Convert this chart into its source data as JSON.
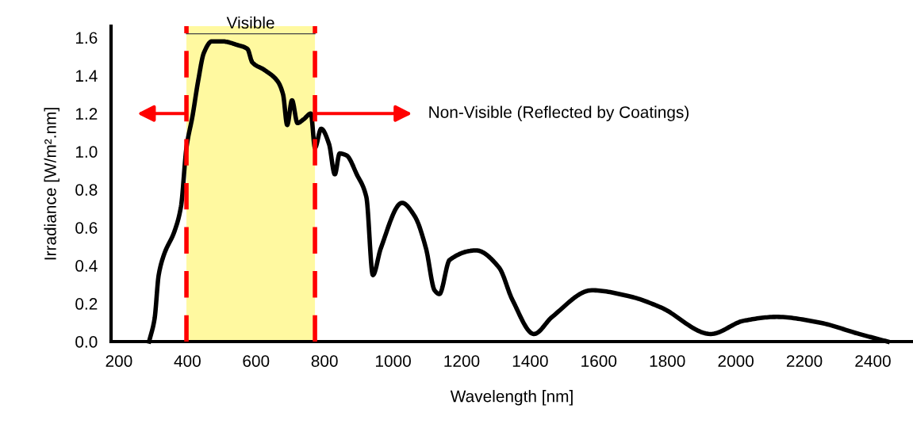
{
  "chart_data": {
    "type": "line",
    "xlabel": "Wavelength [nm]",
    "ylabel": "Irradiance [W/m².nm]",
    "xlim": [
      177,
      2517
    ],
    "xticks": [
      200,
      400,
      600,
      800,
      1000,
      1200,
      1400,
      1600,
      1800,
      2000,
      2200,
      2400
    ],
    "ylim": [
      0,
      1.66
    ],
    "yticks": [
      {
        "value": 0,
        "label": "0.0"
      },
      {
        "value": 0.2,
        "label": "0.2"
      },
      {
        "value": 0.4,
        "label": "0.4"
      },
      {
        "value": 0.6,
        "label": "0.6"
      },
      {
        "value": 0.8,
        "label": "0.8"
      },
      {
        "value": 1.0,
        "label": "1.0"
      },
      {
        "value": 1.2,
        "label": "1.2"
      },
      {
        "value": 1.4,
        "label": "1.4"
      },
      {
        "value": 1.6,
        "label": "1.6"
      }
    ],
    "grid": false,
    "marker": "none",
    "line_style": "solid",
    "series": [
      {
        "color": "#000000",
        "x": [
          288,
          304,
          316,
          332,
          362,
          381,
          397,
          415,
          431,
          448,
          471,
          501,
          547,
          575,
          589,
          624,
          663,
          679,
          691,
          705,
          721,
          739,
          760,
          772,
          790,
          813,
          830,
          844,
          864,
          894,
          922,
          941,
          964,
          1026,
          1063,
          1096,
          1121,
          1135,
          1165,
          1242,
          1309,
          1348,
          1411,
          1464,
          1580,
          1686,
          1781,
          1927,
          2024,
          2119,
          2244,
          2360,
          2443
        ],
        "values": [
          0,
          0.12,
          0.35,
          0.46,
          0.58,
          0.71,
          1.02,
          1.19,
          1.37,
          1.52,
          1.58,
          1.58,
          1.56,
          1.54,
          1.47,
          1.43,
          1.37,
          1.3,
          1.14,
          1.27,
          1.15,
          1.17,
          1.2,
          1.02,
          1.12,
          1.04,
          0.88,
          0.99,
          0.98,
          0.88,
          0.76,
          0.35,
          0.49,
          0.73,
          0.66,
          0.49,
          0.27,
          0.25,
          0.43,
          0.48,
          0.39,
          0.22,
          0.04,
          0.13,
          0.27,
          0.24,
          0.18,
          0.04,
          0.11,
          0.13,
          0.1,
          0.04,
          0
        ]
      }
    ],
    "bands": [
      {
        "axis": "x",
        "from": 397,
        "to": 772,
        "label": "Visible",
        "color": "#fff9a0"
      }
    ],
    "ref_lines": [
      {
        "axis": "x",
        "value": 397,
        "color": "#ff0000",
        "line_style": "dashed"
      },
      {
        "axis": "x",
        "value": 772,
        "color": "#ff0000",
        "line_style": "dashed"
      }
    ],
    "annotations": [
      {
        "text": "Non-Visible (Reflected by Coatings)",
        "x": 772,
        "y": 1.2
      }
    ]
  }
}
